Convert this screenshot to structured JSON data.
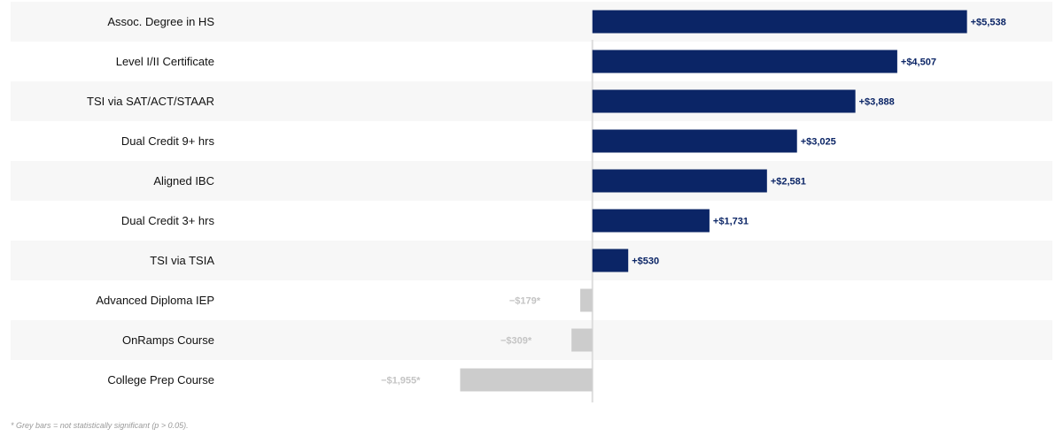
{
  "chart_data": {
    "type": "bar",
    "orientation": "horizontal",
    "categories": [
      "Assoc. Degree in HS",
      "Level I/II Certificate",
      "TSI via SAT/ACT/STAAR",
      "Dual Credit 9+ hrs",
      "Aligned IBC",
      "Dual Credit 3+ hrs",
      "TSI via TSIA",
      "Advanced Diploma IEP",
      "OnRamps Course",
      "College Prep Course"
    ],
    "values": [
      5538,
      4507,
      3888,
      3025,
      2581,
      1731,
      530,
      -179,
      -309,
      -1955
    ],
    "value_labels": [
      "+$5,538",
      "+$4,507",
      "+$3,888",
      "+$3,025",
      "+$2,581",
      "+$1,731",
      "+$530",
      "−$179*",
      "−$309*",
      "−$1,955*"
    ],
    "significant": [
      true,
      true,
      true,
      true,
      true,
      true,
      true,
      false,
      false,
      false
    ],
    "xlim": [
      -8600,
      6800
    ],
    "grid": false,
    "colors": {
      "significant": "#0b2566",
      "not_significant": "#cccccc",
      "row_band": "#f7f7f7",
      "zero_line": "#dddddd"
    }
  },
  "footnote": "* Grey bars = not statistically significant (p > 0.05)."
}
